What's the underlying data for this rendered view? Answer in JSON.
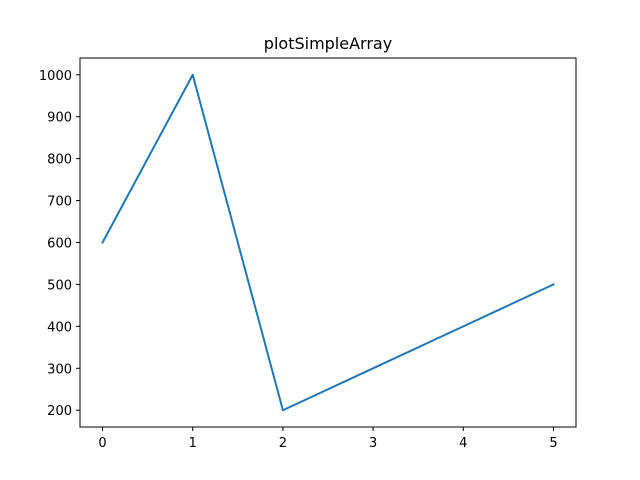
{
  "chart_data": {
    "type": "line",
    "title": "plotSimpleArray",
    "xlabel": "",
    "ylabel": "",
    "x": [
      0,
      1,
      2,
      3,
      4,
      5
    ],
    "series": [
      {
        "values": [
          600,
          1000,
          200,
          300,
          400,
          500
        ],
        "color": "#1f77b4"
      }
    ],
    "xlim": [
      -0.25,
      5.25
    ],
    "ylim": [
      160,
      1040
    ],
    "xticks": [
      0,
      1,
      2,
      3,
      4,
      5
    ],
    "yticks": [
      200,
      300,
      400,
      500,
      600,
      700,
      800,
      900,
      1000
    ],
    "grid": false,
    "legend": "none"
  }
}
